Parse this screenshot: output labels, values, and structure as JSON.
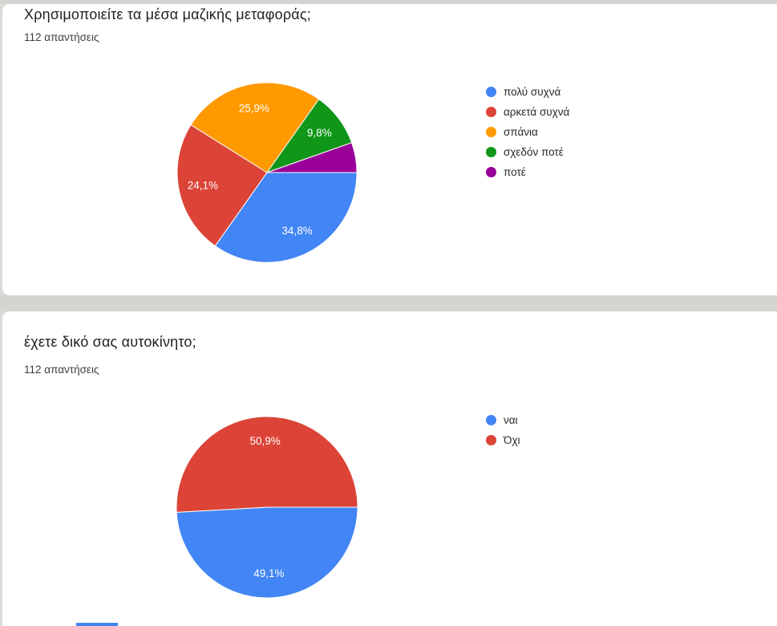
{
  "charts": [
    {
      "title": "Χρησιμοποιείτε τα μέσα μαζικής μεταφοράς;",
      "responses": "112 απαντήσεις",
      "chart_data": {
        "type": "pie",
        "labels": [
          "πολύ συχνά",
          "αρκετά συχνά",
          "σπάνια",
          "σχεδόν ποτέ",
          "ποτέ"
        ],
        "values": [
          34.8,
          24.1,
          25.9,
          9.8,
          5.4
        ],
        "display_labels": [
          "34,8%",
          "24,1%",
          "25,9%",
          "9,8%",
          ""
        ],
        "colors": [
          "#4285F4",
          "#DB4437",
          "#FF9900",
          "#109618",
          "#990099"
        ],
        "start_angle": "east",
        "direction": "clockwise",
        "legend_position": "right"
      }
    },
    {
      "title": "έχετε δικό σας αυτοκίνητο;",
      "responses": "112 απαντήσεις",
      "chart_data": {
        "type": "pie",
        "labels": [
          "ναι",
          "Όχι"
        ],
        "values": [
          49.1,
          50.9
        ],
        "display_labels": [
          "49,1%",
          "50,9%"
        ],
        "colors": [
          "#4285F4",
          "#DB4437"
        ],
        "start_angle": "east",
        "direction": "clockwise",
        "legend_position": "right"
      }
    }
  ]
}
